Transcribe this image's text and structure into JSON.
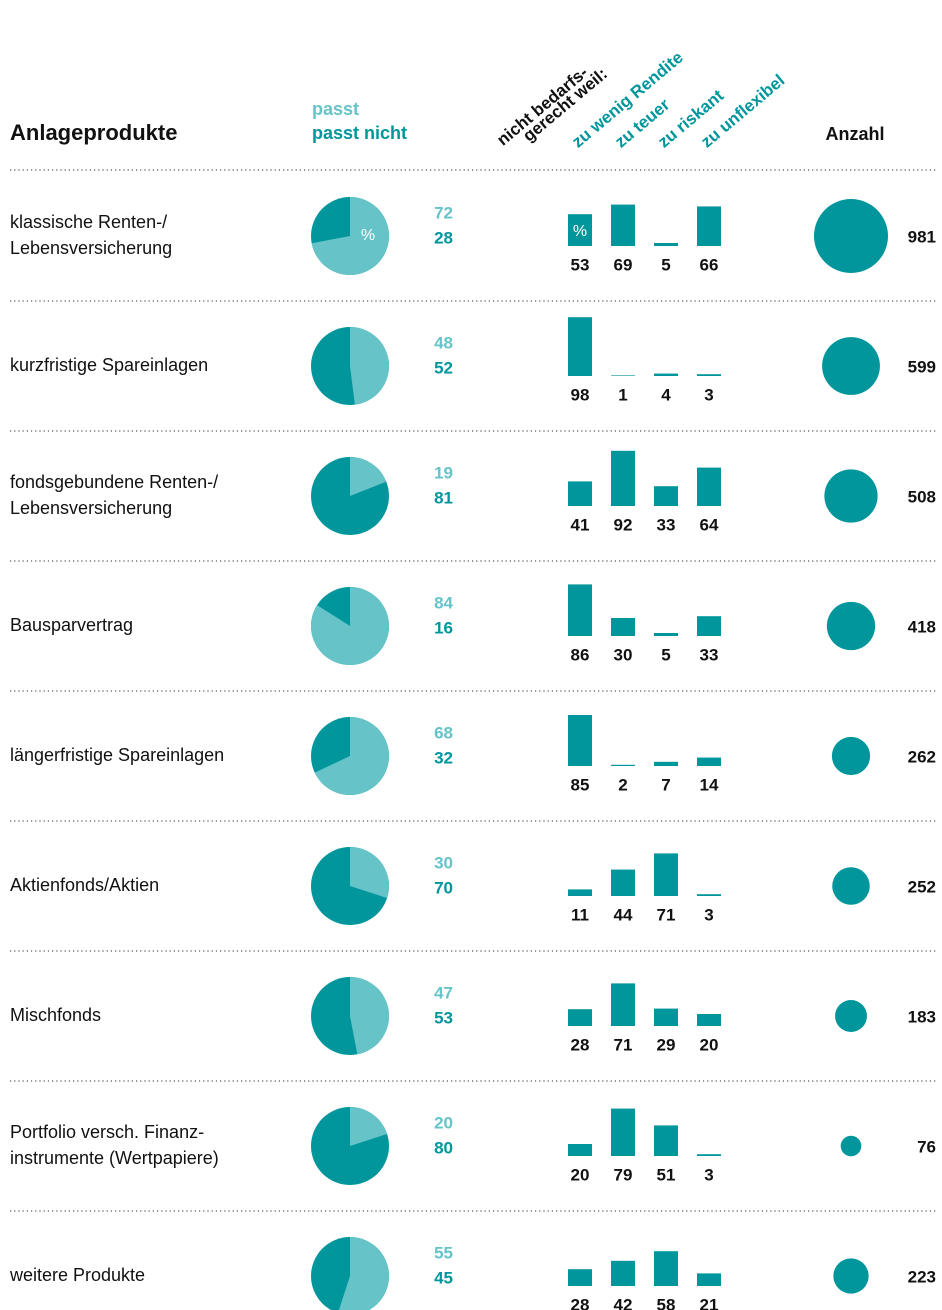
{
  "header": {
    "title": "Anlageprodukte",
    "legend_fit": "passt",
    "legend_unfit": "passt nicht",
    "reason_intro": [
      "nicht bedarfs-",
      "gerecht weil:"
    ],
    "reasons": [
      "zu wenig Rendite",
      "zu teuer",
      "zu riskant",
      "zu unflexibel"
    ],
    "count": "Anzahl",
    "percent_sign": "%"
  },
  "colors": {
    "fit": "#66c4c9",
    "unfit": "#00969c"
  },
  "rows": [
    {
      "label": [
        "klassische Renten-/",
        "Lebensversicherung"
      ],
      "fit": 72,
      "unfit": 28,
      "reasons": [
        53,
        69,
        5,
        66
      ],
      "count": 981
    },
    {
      "label": [
        "kurzfristige Spareinlagen"
      ],
      "fit": 48,
      "unfit": 52,
      "reasons": [
        98,
        1,
        4,
        3
      ],
      "count": 599
    },
    {
      "label": [
        "fondsgebundene Renten-/",
        "Lebensversicherung"
      ],
      "fit": 19,
      "unfit": 81,
      "reasons": [
        41,
        92,
        33,
        64
      ],
      "count": 508
    },
    {
      "label": [
        "Bausparvertrag"
      ],
      "fit": 84,
      "unfit": 16,
      "reasons": [
        86,
        30,
        5,
        33
      ],
      "count": 418
    },
    {
      "label": [
        "längerfristige Spareinlagen"
      ],
      "fit": 68,
      "unfit": 32,
      "reasons": [
        85,
        2,
        7,
        14
      ],
      "count": 262
    },
    {
      "label": [
        "Aktienfonds/Aktien"
      ],
      "fit": 30,
      "unfit": 70,
      "reasons": [
        11,
        44,
        71,
        3
      ],
      "count": 252
    },
    {
      "label": [
        "Mischfonds"
      ],
      "fit": 47,
      "unfit": 53,
      "reasons": [
        28,
        71,
        29,
        20
      ],
      "count": 183
    },
    {
      "label": [
        "Portfolio versch. Finanz-",
        "instrumente (Wertpapiere)"
      ],
      "fit": 20,
      "unfit": 80,
      "reasons": [
        20,
        79,
        51,
        3
      ],
      "count": 76
    },
    {
      "label": [
        "weitere Produkte"
      ],
      "fit": 55,
      "unfit": 45,
      "reasons": [
        28,
        42,
        58,
        21
      ],
      "count": 223
    }
  ]
}
